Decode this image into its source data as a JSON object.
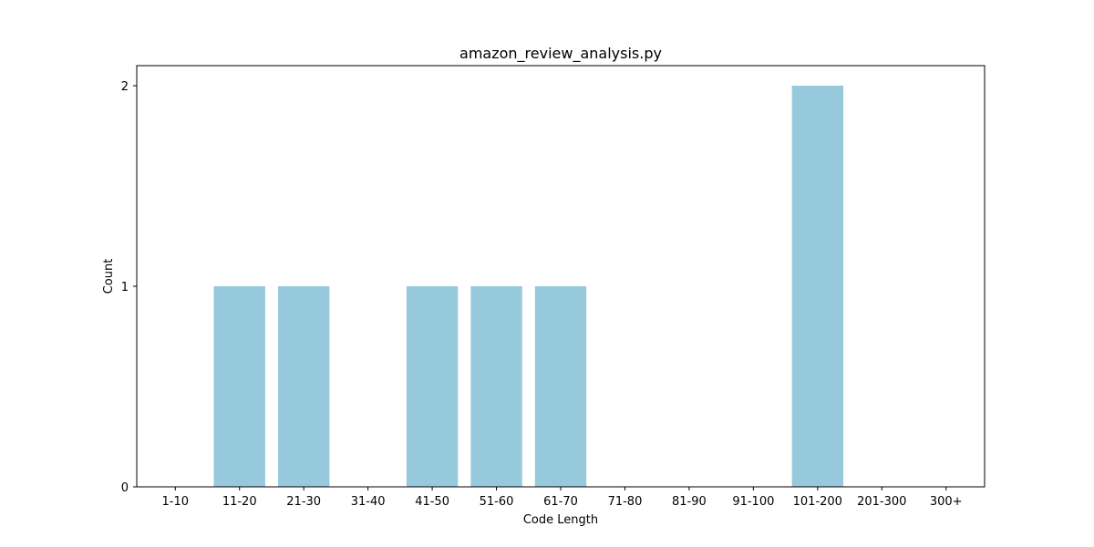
{
  "chart_data": {
    "type": "bar",
    "title": "amazon_review_analysis.py",
    "xlabel": "Code Length",
    "ylabel": "Count",
    "categories": [
      "1-10",
      "11-20",
      "21-30",
      "31-40",
      "41-50",
      "51-60",
      "61-70",
      "71-80",
      "81-90",
      "91-100",
      "101-200",
      "201-300",
      "300+"
    ],
    "values": [
      0,
      1,
      1,
      0,
      1,
      1,
      1,
      0,
      0,
      0,
      2,
      0,
      0
    ],
    "ylim": [
      0,
      2.1
    ],
    "yticks": [
      0,
      1,
      2
    ],
    "grid": false,
    "bar_color": "#96c9dc"
  }
}
